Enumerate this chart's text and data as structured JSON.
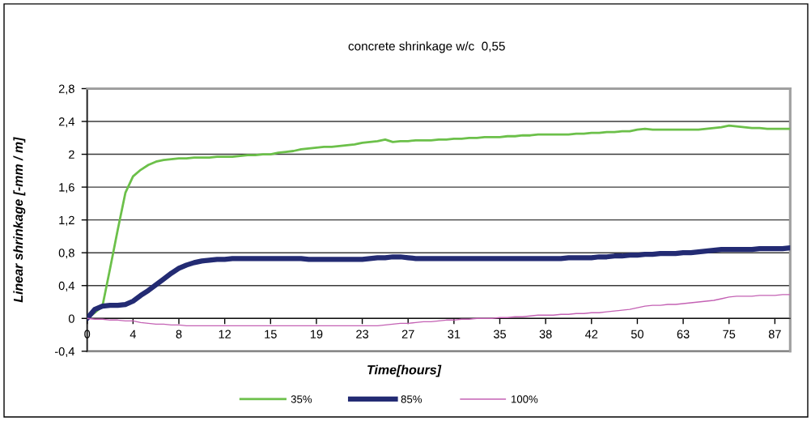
{
  "chart_data": {
    "type": "line",
    "title": "concrete shrinkage w/c  0,55",
    "xlabel": "Time[hours]",
    "ylabel": "Linear shrinkage [-mm / m]",
    "categories": [
      "0",
      null,
      null,
      null,
      null,
      null,
      "4",
      null,
      null,
      null,
      null,
      null,
      "8",
      null,
      null,
      null,
      null,
      null,
      "12",
      null,
      null,
      null,
      null,
      null,
      "15",
      null,
      null,
      null,
      null,
      null,
      "19",
      null,
      null,
      null,
      null,
      null,
      "23",
      null,
      null,
      null,
      null,
      null,
      "27",
      null,
      null,
      null,
      null,
      null,
      "31",
      null,
      null,
      null,
      null,
      null,
      "35",
      null,
      null,
      null,
      null,
      null,
      "38",
      null,
      null,
      null,
      null,
      null,
      "42",
      null,
      null,
      null,
      null,
      null,
      "50",
      null,
      null,
      null,
      null,
      null,
      "63",
      null,
      null,
      null,
      null,
      null,
      "75",
      null,
      null,
      null,
      null,
      null,
      "87",
      null,
      null
    ],
    "ylim": [
      -0.4,
      2.8
    ],
    "yticks": [
      {
        "value": -0.4,
        "label": "-0,4"
      },
      0,
      {
        "value": 0.4,
        "label": "0,4"
      },
      {
        "value": 0.8,
        "label": "0,8"
      },
      {
        "value": 1.2,
        "label": "1,2"
      },
      {
        "value": 1.6,
        "label": "1,6"
      },
      2,
      {
        "value": 2.4,
        "label": "2,4"
      },
      {
        "value": 2.8,
        "label": "2,8"
      }
    ],
    "grid": "y",
    "legend": "bottom",
    "series": [
      {
        "name": "35%",
        "color": "#6cc04a",
        "values": [
          0,
          0.07,
          0.15,
          0.61,
          1.08,
          1.53,
          1.73,
          1.81,
          1.87,
          1.91,
          1.93,
          1.94,
          1.95,
          1.95,
          1.96,
          1.96,
          1.96,
          1.97,
          1.97,
          1.97,
          1.98,
          1.99,
          1.99,
          2.0,
          2.0,
          2.02,
          2.03,
          2.04,
          2.06,
          2.07,
          2.08,
          2.09,
          2.09,
          2.1,
          2.11,
          2.12,
          2.14,
          2.15,
          2.16,
          2.18,
          2.15,
          2.16,
          2.16,
          2.17,
          2.17,
          2.17,
          2.18,
          2.18,
          2.19,
          2.19,
          2.2,
          2.2,
          2.21,
          2.21,
          2.21,
          2.22,
          2.22,
          2.23,
          2.23,
          2.24,
          2.24,
          2.24,
          2.24,
          2.24,
          2.25,
          2.25,
          2.26,
          2.26,
          2.27,
          2.27,
          2.28,
          2.28,
          2.3,
          2.31,
          2.3,
          2.3,
          2.3,
          2.3,
          2.3,
          2.3,
          2.3,
          2.31,
          2.32,
          2.33,
          2.35,
          2.34,
          2.33,
          2.32,
          2.32,
          2.31,
          2.31,
          2.31,
          2.31
        ]
      },
      {
        "name": "85%",
        "color": "#232b73",
        "values": [
          0,
          0.11,
          0.15,
          0.16,
          0.16,
          0.17,
          0.21,
          0.28,
          0.34,
          0.41,
          0.48,
          0.55,
          0.61,
          0.65,
          0.68,
          0.7,
          0.71,
          0.72,
          0.72,
          0.73,
          0.73,
          0.73,
          0.73,
          0.73,
          0.73,
          0.73,
          0.73,
          0.73,
          0.73,
          0.72,
          0.72,
          0.72,
          0.72,
          0.72,
          0.72,
          0.72,
          0.72,
          0.73,
          0.74,
          0.74,
          0.75,
          0.75,
          0.74,
          0.73,
          0.73,
          0.73,
          0.73,
          0.73,
          0.73,
          0.73,
          0.73,
          0.73,
          0.73,
          0.73,
          0.73,
          0.73,
          0.73,
          0.73,
          0.73,
          0.73,
          0.73,
          0.73,
          0.73,
          0.74,
          0.74,
          0.74,
          0.74,
          0.75,
          0.75,
          0.76,
          0.76,
          0.77,
          0.77,
          0.78,
          0.78,
          0.79,
          0.79,
          0.79,
          0.8,
          0.8,
          0.81,
          0.82,
          0.83,
          0.84,
          0.84,
          0.84,
          0.84,
          0.84,
          0.85,
          0.85,
          0.85,
          0.85,
          0.86
        ]
      },
      {
        "name": "100%",
        "color": "#c462b4",
        "values": [
          0,
          -0.01,
          -0.01,
          -0.02,
          -0.02,
          -0.03,
          -0.03,
          -0.05,
          -0.06,
          -0.07,
          -0.07,
          -0.08,
          -0.08,
          -0.09,
          -0.09,
          -0.09,
          -0.09,
          -0.09,
          -0.09,
          -0.09,
          -0.09,
          -0.09,
          -0.09,
          -0.09,
          -0.09,
          -0.09,
          -0.09,
          -0.09,
          -0.09,
          -0.09,
          -0.09,
          -0.09,
          -0.09,
          -0.09,
          -0.09,
          -0.09,
          -0.09,
          -0.09,
          -0.09,
          -0.08,
          -0.07,
          -0.06,
          -0.06,
          -0.05,
          -0.04,
          -0.04,
          -0.03,
          -0.02,
          -0.02,
          -0.01,
          -0.01,
          0,
          0,
          0,
          0.01,
          0.01,
          0.02,
          0.02,
          0.03,
          0.04,
          0.04,
          0.04,
          0.05,
          0.05,
          0.06,
          0.06,
          0.07,
          0.07,
          0.08,
          0.09,
          0.1,
          0.11,
          0.13,
          0.15,
          0.16,
          0.16,
          0.17,
          0.17,
          0.18,
          0.19,
          0.2,
          0.21,
          0.22,
          0.24,
          0.26,
          0.27,
          0.27,
          0.27,
          0.28,
          0.28,
          0.28,
          0.29,
          0.29
        ]
      }
    ]
  }
}
